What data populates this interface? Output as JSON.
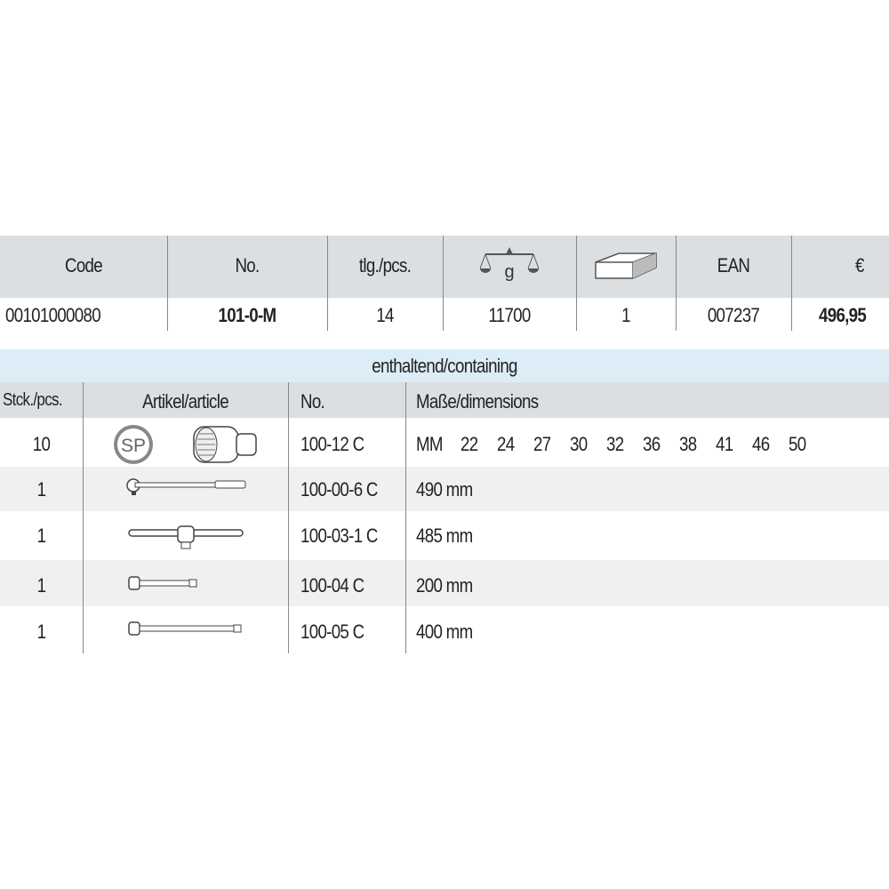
{
  "product_header": {
    "columns": [
      "Code",
      "No.",
      "tlg./pcs.",
      "weight-icon",
      "package-icon",
      "EAN",
      "€"
    ],
    "weight_unit": "g",
    "values": {
      "code": "00101000080",
      "no": "101-0-M",
      "pcs": "14",
      "weight": "11700",
      "package": "1",
      "ean": "007237",
      "price": "496,95"
    }
  },
  "containing": {
    "title": "enthaltend/containing",
    "headers": [
      "Stck./pcs.",
      "Artikel/article",
      "No.",
      "Maße/dimensions"
    ],
    "rows": [
      {
        "qty": "10",
        "icon": "socket-sp-icon",
        "no": "100-12 C",
        "dims_label": "MM",
        "sizes": [
          "22",
          "24",
          "27",
          "30",
          "32",
          "36",
          "38",
          "41",
          "46",
          "50"
        ]
      },
      {
        "qty": "1",
        "icon": "ratchet-icon",
        "no": "100-00-6 C",
        "dims": "490 mm"
      },
      {
        "qty": "1",
        "icon": "t-handle-icon",
        "no": "100-03-1 C",
        "dims": "485 mm"
      },
      {
        "qty": "1",
        "icon": "extension-bar-short-icon",
        "no": "100-04 C",
        "dims": "200 mm"
      },
      {
        "qty": "1",
        "icon": "extension-bar-long-icon",
        "no": "100-05 C",
        "dims": "400 mm"
      }
    ]
  },
  "colors": {
    "header_gray": "#dcdfe1",
    "band_blue": "#dcedf7",
    "row_gray": "#eff0f1"
  }
}
